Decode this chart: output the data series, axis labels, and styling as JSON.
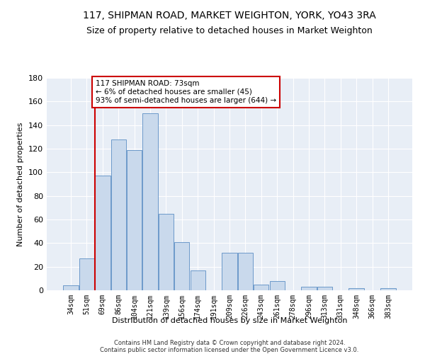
{
  "title": "117, SHIPMAN ROAD, MARKET WEIGHTON, YORK, YO43 3RA",
  "subtitle": "Size of property relative to detached houses in Market Weighton",
  "xlabel": "Distribution of detached houses by size in Market Weighton",
  "ylabel": "Number of detached properties",
  "categories": [
    "34sqm",
    "51sqm",
    "69sqm",
    "86sqm",
    "104sqm",
    "121sqm",
    "139sqm",
    "156sqm",
    "174sqm",
    "191sqm",
    "209sqm",
    "226sqm",
    "243sqm",
    "261sqm",
    "278sqm",
    "296sqm",
    "313sqm",
    "331sqm",
    "348sqm",
    "366sqm",
    "383sqm"
  ],
  "bar_heights": [
    4,
    27,
    97,
    128,
    119,
    150,
    65,
    41,
    17,
    0,
    32,
    32,
    5,
    8,
    0,
    3,
    3,
    0,
    2,
    0,
    2
  ],
  "bar_color": "#c9d9ec",
  "bar_edge_color": "#5b8ec4",
  "vline_x_index": 2,
  "vline_color": "#cc0000",
  "annotation_text": "117 SHIPMAN ROAD: 73sqm\n← 6% of detached houses are smaller (45)\n93% of semi-detached houses are larger (644) →",
  "annotation_box_color": "#ffffff",
  "annotation_box_edge": "#cc0000",
  "ylim": [
    0,
    180
  ],
  "yticks": [
    0,
    20,
    40,
    60,
    80,
    100,
    120,
    140,
    160,
    180
  ],
  "footer_line1": "Contains HM Land Registry data © Crown copyright and database right 2024.",
  "footer_line2": "Contains public sector information licensed under the Open Government Licence v3.0.",
  "bg_color": "#e8eef6",
  "grid_color": "#ffffff",
  "title_fontsize": 10,
  "subtitle_fontsize": 9,
  "tick_fontsize": 7,
  "ylabel_fontsize": 8,
  "xlabel_fontsize": 8,
  "footer_fontsize": 6,
  "annotation_fontsize": 7.5
}
